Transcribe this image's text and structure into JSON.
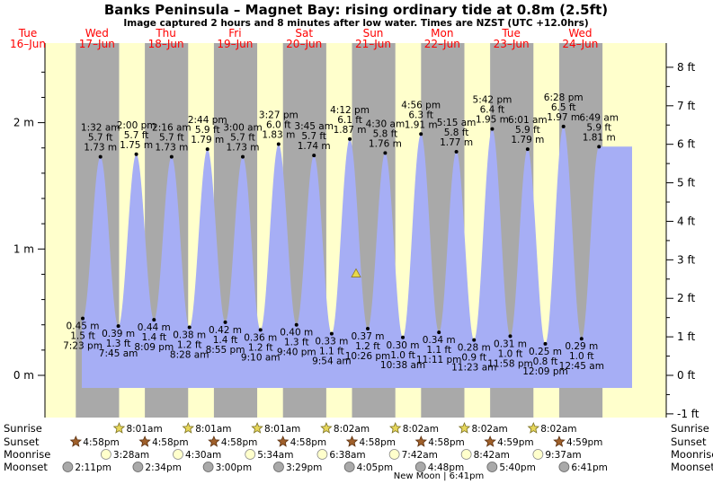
{
  "title": "Banks Peninsula – Magnet Bay: rising  ordinary tide at 0.8m (2.5ft)",
  "subtitle": "Image captured 2 hours and 8 minutes after low water. Times are NZST (UTC +12.0hrs)",
  "chart_data": {
    "type": "area",
    "days": [
      {
        "name": "Tue",
        "date": "16–Jun"
      },
      {
        "name": "Wed",
        "date": "17–Jun"
      },
      {
        "name": "Thu",
        "date": "18–Jun"
      },
      {
        "name": "Fri",
        "date": "19–Jun"
      },
      {
        "name": "Sat",
        "date": "20–Jun"
      },
      {
        "name": "Sun",
        "date": "21–Jun"
      },
      {
        "name": "Mon",
        "date": "22–Jun"
      },
      {
        "name": "Tue",
        "date": "23–Jun"
      },
      {
        "name": "Wed",
        "date": "24–Jun"
      }
    ],
    "y_left_ticks": [
      "0 m",
      "1 m",
      "2 m"
    ],
    "y_right_ticks": [
      "-1 ft",
      "0 ft",
      "1 ft",
      "2 ft",
      "3 ft",
      "4 ft",
      "5 ft",
      "6 ft",
      "7 ft",
      "8 ft"
    ],
    "tides": [
      {
        "type": "low",
        "time": "7:23 pm",
        "m": "0.45 m",
        "ft": "1.5 ft"
      },
      {
        "type": "high",
        "time": "1:32 am",
        "m": "1.73 m",
        "ft": "5.7 ft"
      },
      {
        "type": "low",
        "time": "7:45 am",
        "m": "0.39 m",
        "ft": "1.3 ft"
      },
      {
        "type": "high",
        "time": "2:00 pm",
        "m": "1.75 m",
        "ft": "5.7 ft"
      },
      {
        "type": "low",
        "time": "8:09 pm",
        "m": "0.44 m",
        "ft": "1.4 ft"
      },
      {
        "type": "high",
        "time": "2:16 am",
        "m": "1.73 m",
        "ft": "5.7 ft"
      },
      {
        "type": "low",
        "time": "8:28 am",
        "m": "0.38 m",
        "ft": "1.2 ft"
      },
      {
        "type": "high",
        "time": "2:44 pm",
        "m": "1.79 m",
        "ft": "5.9 ft"
      },
      {
        "type": "low",
        "time": "8:55 pm",
        "m": "0.42 m",
        "ft": "1.4 ft"
      },
      {
        "type": "high",
        "time": "3:00 am",
        "m": "1.73 m",
        "ft": "5.7 ft"
      },
      {
        "type": "low",
        "time": "9:10 am",
        "m": "0.36 m",
        "ft": "1.2 ft"
      },
      {
        "type": "high",
        "time": "3:27 pm",
        "m": "1.83 m",
        "ft": "6.0 ft"
      },
      {
        "type": "low",
        "time": "9:40 pm",
        "m": "0.40 m",
        "ft": "1.3 ft"
      },
      {
        "type": "high",
        "time": "3:45 am",
        "m": "1.74 m",
        "ft": "5.7 ft"
      },
      {
        "type": "low",
        "time": "9:54 am",
        "m": "0.33 m",
        "ft": "1.1 ft"
      },
      {
        "type": "high",
        "time": "4:12 pm",
        "m": "1.87 m",
        "ft": "6.1 ft"
      },
      {
        "type": "low",
        "time": "10:26 pm",
        "m": "0.37 m",
        "ft": "1.2 ft"
      },
      {
        "type": "high",
        "time": "4:30 am",
        "m": "1.76 m",
        "ft": "5.8 ft"
      },
      {
        "type": "low",
        "time": "10:38 am",
        "m": "0.30 m",
        "ft": "1.0 ft"
      },
      {
        "type": "high",
        "time": "4:56 pm",
        "m": "1.91 m",
        "ft": "6.3 ft"
      },
      {
        "type": "low",
        "time": "11:11 pm",
        "m": "0.34 m",
        "ft": "1.1 ft"
      },
      {
        "type": "high",
        "time": "5:15 am",
        "m": "1.77 m",
        "ft": "5.8 ft"
      },
      {
        "type": "low",
        "time": "11:23 am",
        "m": "0.28 m",
        "ft": "0.9 ft"
      },
      {
        "type": "high",
        "time": "5:42 pm",
        "m": "1.95 m",
        "ft": "6.4 ft"
      },
      {
        "type": "low",
        "time": "11:58 pm",
        "m": "0.31 m",
        "ft": "1.0 ft"
      },
      {
        "type": "high",
        "time": "6:01 am",
        "m": "1.79 m",
        "ft": "5.9 ft"
      },
      {
        "type": "low",
        "time": "12:09 pm",
        "m": "0.25 m",
        "ft": "0.8 ft"
      },
      {
        "type": "high",
        "time": "6:28 pm",
        "m": "1.97 m",
        "ft": "6.5 ft"
      },
      {
        "type": "low",
        "time": "12:45 am",
        "m": "0.29 m",
        "ft": "1.0 ft"
      },
      {
        "type": "high",
        "time": "6:49 am",
        "m": "1.81 m",
        "ft": "5.9 ft"
      }
    ],
    "current_tide_m": 0.8,
    "row_labels": [
      "Sunrise",
      "Sunset",
      "Moonrise",
      "Moonset"
    ],
    "sunrise": [
      "8:01am",
      "8:01am",
      "8:01am",
      "8:02am",
      "8:02am",
      "8:02am",
      "8:02am"
    ],
    "sunset": [
      "4:58pm",
      "4:58pm",
      "4:58pm",
      "4:58pm",
      "4:58pm",
      "4:58pm",
      "4:59pm",
      "4:59pm"
    ],
    "moonrise": [
      "3:28am",
      "4:30am",
      "5:34am",
      "6:38am",
      "7:42am",
      "8:42am",
      "9:37am"
    ],
    "moonset": [
      "2:11pm",
      "2:34pm",
      "3:00pm",
      "3:29pm",
      "4:05pm",
      "4:48pm",
      "5:40pm",
      "6:41pm"
    ],
    "moon_phase": "New Moon | 6:41pm",
    "colors": {
      "water": "#a6aef5",
      "day": "#ffffcc",
      "night": "#a9a9a9",
      "day_header": "#ff0000",
      "sun_icon": "#e6d65a",
      "sunset_icon": "#a0602a",
      "moonrise_icon": "#ffffcc",
      "moonset_icon": "#a9a9a9"
    }
  }
}
